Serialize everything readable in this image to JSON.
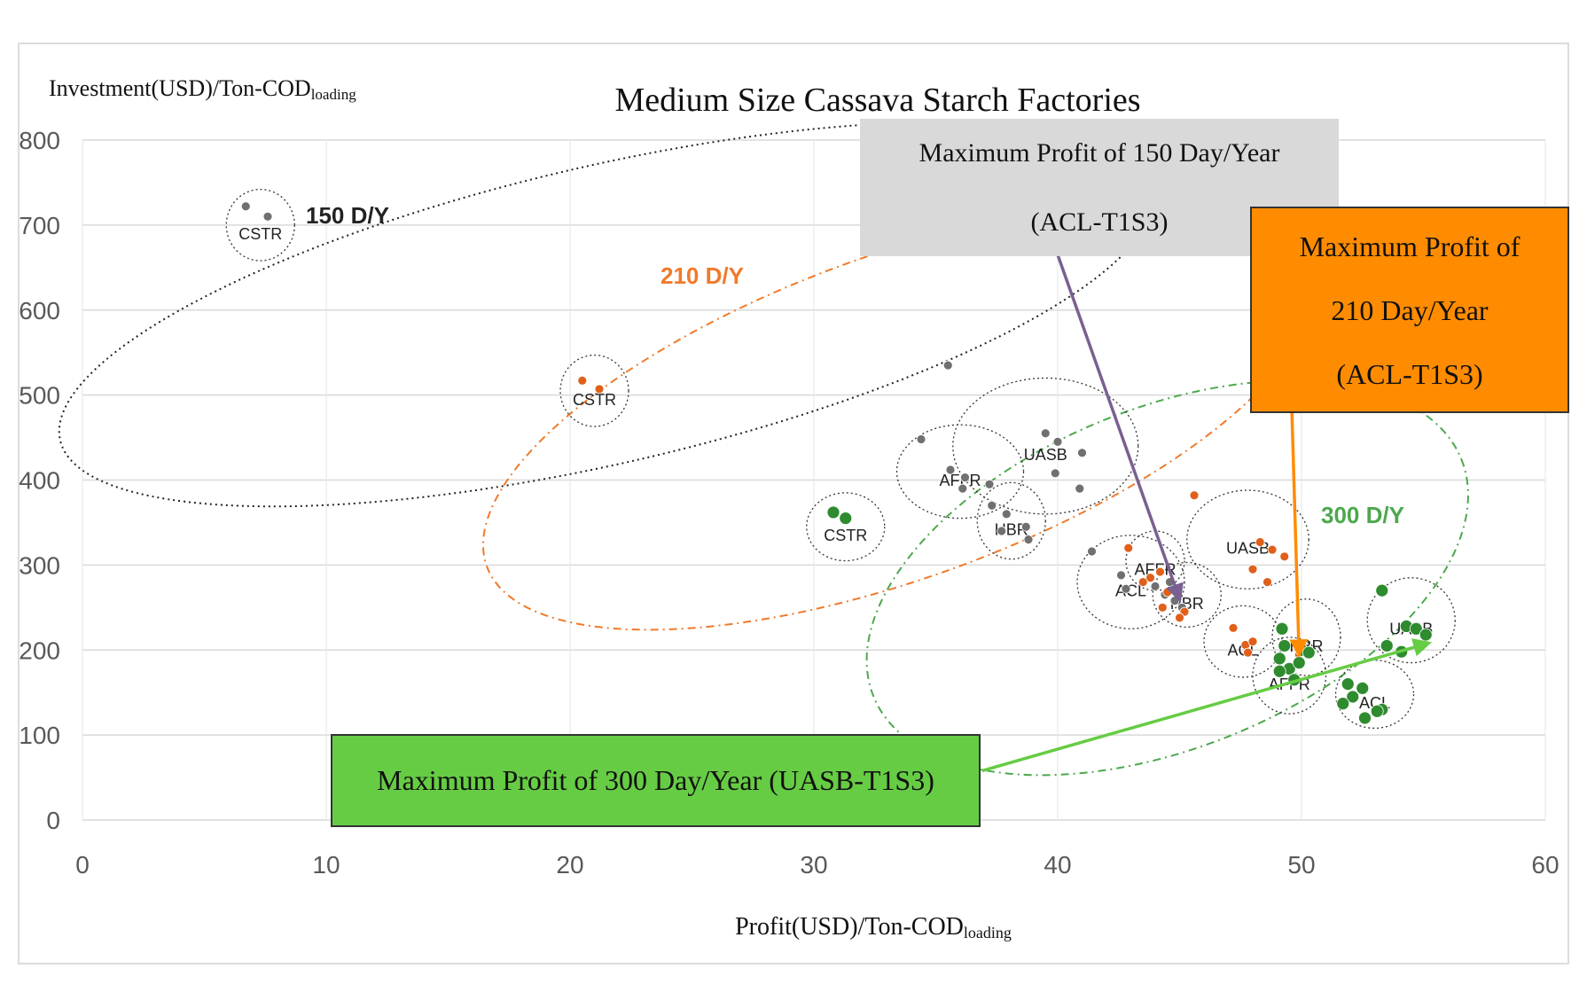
{
  "chart_data": {
    "type": "scatter",
    "title": "Medium Size Cassava Starch Factories",
    "xlabel": {
      "main": "Profit(USD)/Ton-COD",
      "sub": "loading"
    },
    "ylabel": {
      "main": "Investment(USD)/Ton-COD",
      "sub": "loading"
    },
    "xlim": [
      0,
      60
    ],
    "ylim": [
      0,
      800
    ],
    "xticks": [
      0,
      10,
      20,
      30,
      40,
      50,
      60
    ],
    "yticks": [
      0,
      100,
      200,
      300,
      400,
      500,
      600,
      700,
      800
    ],
    "grid": "horizontal",
    "series": [
      {
        "name": "150 D/Y",
        "color": "#707070",
        "points": [
          [
            6.7,
            722
          ],
          [
            7.6,
            710
          ],
          [
            35.5,
            535
          ],
          [
            39.5,
            455
          ],
          [
            40.0,
            445
          ],
          [
            41.0,
            432
          ],
          [
            39.9,
            408
          ],
          [
            40.9,
            390
          ],
          [
            34.4,
            448
          ],
          [
            35.6,
            412
          ],
          [
            36.2,
            403
          ],
          [
            36.1,
            390
          ],
          [
            37.2,
            395
          ],
          [
            37.3,
            370
          ],
          [
            37.9,
            360
          ],
          [
            37.7,
            340
          ],
          [
            38.7,
            345
          ],
          [
            38.8,
            330
          ],
          [
            41.4,
            316
          ],
          [
            42.6,
            288
          ],
          [
            42.8,
            272
          ],
          [
            44.0,
            275
          ],
          [
            44.4,
            265
          ],
          [
            44.8,
            258
          ],
          [
            45.1,
            250
          ],
          [
            44.6,
            280
          ]
        ]
      },
      {
        "name": "210 D/Y",
        "color": "#e0601a",
        "points": [
          [
            20.5,
            517
          ],
          [
            21.2,
            507
          ],
          [
            42.9,
            320
          ],
          [
            44.2,
            292
          ],
          [
            43.8,
            285
          ],
          [
            43.5,
            280
          ],
          [
            44.5,
            268
          ],
          [
            44.3,
            250
          ],
          [
            45.2,
            245
          ],
          [
            45.0,
            238
          ],
          [
            45.6,
            382
          ],
          [
            47.2,
            226
          ],
          [
            47.7,
            206
          ],
          [
            47.8,
            197
          ],
          [
            48.0,
            210
          ],
          [
            48.3,
            327
          ],
          [
            48.8,
            318
          ],
          [
            49.3,
            310
          ],
          [
            48.0,
            295
          ],
          [
            48.6,
            280
          ],
          [
            49.9,
            195
          ]
        ]
      },
      {
        "name": "300 D/Y",
        "color": "#2e8b2e",
        "points": [
          [
            30.8,
            362
          ],
          [
            31.3,
            355
          ],
          [
            49.2,
            225
          ],
          [
            49.3,
            205
          ],
          [
            49.1,
            190
          ],
          [
            49.5,
            178
          ],
          [
            49.9,
            185
          ],
          [
            50.0,
            200
          ],
          [
            50.3,
            197
          ],
          [
            49.1,
            175
          ],
          [
            49.7,
            165
          ],
          [
            53.3,
            270
          ],
          [
            53.5,
            205
          ],
          [
            54.1,
            198
          ],
          [
            54.3,
            228
          ],
          [
            54.7,
            225
          ],
          [
            55.1,
            218
          ],
          [
            51.9,
            160
          ],
          [
            52.1,
            145
          ],
          [
            51.7,
            137
          ],
          [
            52.5,
            155
          ],
          [
            53.3,
            130
          ],
          [
            53.1,
            128
          ],
          [
            52.6,
            120
          ]
        ]
      }
    ],
    "groups": [
      {
        "label": "150 D/Y",
        "color": "#222222",
        "center": [
          21.5,
          595
        ],
        "rx": 23,
        "ry": 175,
        "angle_deg": -13,
        "style": "dotted"
      },
      {
        "label": "210 D/Y",
        "color": "#f07a2a",
        "center": [
          33.5,
          475
        ],
        "rx": 18,
        "ry": 190,
        "angle_deg": -20,
        "style": "dashdot"
      },
      {
        "label": "300 D/Y",
        "color": "#4ca84c",
        "center": [
          44.5,
          285
        ],
        "rx": 13,
        "ry": 200,
        "angle_deg": -22,
        "style": "dashdot"
      }
    ],
    "clusters": [
      {
        "label": "CSTR",
        "center": [
          7.3,
          700
        ],
        "rx": 1.4,
        "ry": 42
      },
      {
        "label": "CSTR",
        "center": [
          21.0,
          505
        ],
        "rx": 1.4,
        "ry": 42
      },
      {
        "label": "CSTR",
        "center": [
          31.3,
          345
        ],
        "rx": 1.6,
        "ry": 40
      },
      {
        "label": "UASB",
        "center": [
          39.5,
          440
        ],
        "rx": 3.8,
        "ry": 80
      },
      {
        "label": "AFFR",
        "center": [
          36.0,
          410
        ],
        "rx": 2.6,
        "ry": 55
      },
      {
        "label": "HBR",
        "center": [
          38.1,
          352
        ],
        "rx": 1.4,
        "ry": 45
      },
      {
        "label": "AFFR",
        "center": [
          44.0,
          305
        ],
        "rx": 1.2,
        "ry": 35
      },
      {
        "label": "ACL",
        "center": [
          43.0,
          280
        ],
        "rx": 2.2,
        "ry": 55
      },
      {
        "label": "HBR",
        "center": [
          45.3,
          265
        ],
        "rx": 1.4,
        "ry": 38
      },
      {
        "label": "UASB",
        "center": [
          47.8,
          330
        ],
        "rx": 2.5,
        "ry": 58
      },
      {
        "label": "ACL",
        "center": [
          47.6,
          210
        ],
        "rx": 1.6,
        "ry": 42
      },
      {
        "label": "HBR",
        "center": [
          50.2,
          215
        ],
        "rx": 1.4,
        "ry": 45
      },
      {
        "label": "AFFR",
        "center": [
          49.5,
          170
        ],
        "rx": 1.5,
        "ry": 45
      },
      {
        "label": "UASB",
        "center": [
          54.5,
          235
        ],
        "rx": 1.8,
        "ry": 50
      },
      {
        "label": "ACL",
        "center": [
          53.0,
          148
        ],
        "rx": 1.6,
        "ry": 40
      }
    ],
    "annotations": [
      {
        "lines": [
          "Maximum Profit of 150 Day/Year",
          "(ACL-T1S3)"
        ],
        "color": "#d9d9d9",
        "arrow_color": "#7a6090",
        "arrow_from": [
          40.0,
          665
        ],
        "arrow_to": [
          45.0,
          260
        ]
      },
      {
        "lines": [
          "Maximum Profit of",
          "210 Day/Year",
          "(ACL-T1S3)"
        ],
        "color": "#ff8c00",
        "arrow_color": "#ff8c00",
        "arrow_from": [
          49.6,
          485
        ],
        "arrow_to": [
          49.9,
          195
        ]
      },
      {
        "lines": [
          "Maximum Profit of 300 Day/Year (UASB-T1S3)"
        ],
        "color": "#66cc44",
        "arrow_color": "#66cc44",
        "arrow_from": [
          36.9,
          58
        ],
        "arrow_to": [
          55.2,
          208
        ]
      }
    ]
  }
}
